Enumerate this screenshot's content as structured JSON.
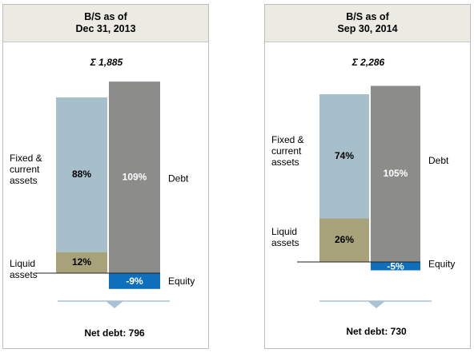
{
  "colors": {
    "fixed": "#a7bfca",
    "liquid": "#a8a27b",
    "debt": "#8c8c8a",
    "equity": "#0e6fbd",
    "arrow": "#a8c4d4",
    "header_bg": "#ecebe3"
  },
  "chart_data": [
    {
      "type": "stacked-bar",
      "title_line1": "B/S as of",
      "title_line2": "Dec 31, 2013",
      "total_label": "Σ 1,885",
      "total": 1885,
      "assets": [
        {
          "name": "Liquid assets",
          "label_lines": [
            "Liquid",
            "assets"
          ],
          "value_label": "12%",
          "value": 12
        },
        {
          "name": "Fixed & current assets",
          "label_lines": [
            "Fixed &",
            "current",
            "assets"
          ],
          "value_label": "88%",
          "value": 88
        }
      ],
      "liabilities": [
        {
          "name": "Equity",
          "label_lines": [
            "Equity"
          ],
          "value_label": "-9%",
          "value": -9
        },
        {
          "name": "Debt",
          "label_lines": [
            "Debt"
          ],
          "value_label": "109%",
          "value": 109
        }
      ],
      "net_debt_label": "Net debt: 796",
      "net_debt": 796
    },
    {
      "type": "stacked-bar",
      "title_line1": "B/S as of",
      "title_line2": "Sep 30, 2014",
      "total_label": "Σ 2,286",
      "total": 2286,
      "assets": [
        {
          "name": "Liquid assets",
          "label_lines": [
            "Liquid",
            "assets"
          ],
          "value_label": "26%",
          "value": 26
        },
        {
          "name": "Fixed & current assets",
          "label_lines": [
            "Fixed &",
            "current",
            "assets"
          ],
          "value_label": "74%",
          "value": 74
        }
      ],
      "liabilities": [
        {
          "name": "Equity",
          "label_lines": [
            "Equity"
          ],
          "value_label": "-5%",
          "value": -5
        },
        {
          "name": "Debt",
          "label_lines": [
            "Debt"
          ],
          "value_label": "105%",
          "value": 105
        }
      ],
      "net_debt_label": "Net debt: 730",
      "net_debt": 730
    }
  ]
}
